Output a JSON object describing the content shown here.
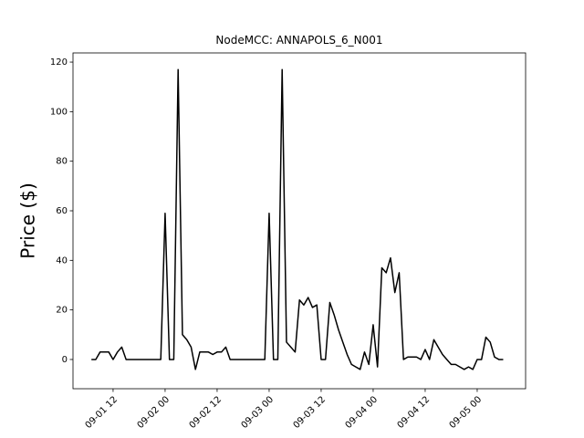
{
  "chart_data": {
    "type": "line",
    "title": "NodeMCC: ANNAPOLS_6_N001",
    "y_label": "Price ($)",
    "color": "#000000",
    "x": [
      "09-01 07",
      "09-01 08",
      "09-01 09",
      "09-01 10",
      "09-01 11",
      "09-01 12",
      "09-01 13",
      "09-01 14",
      "09-01 15",
      "09-01 16",
      "09-01 17",
      "09-01 18",
      "09-01 19",
      "09-01 20",
      "09-01 21",
      "09-01 22",
      "09-01 23",
      "09-02 00",
      "09-02 01",
      "09-02 02",
      "09-02 03",
      "09-02 04",
      "09-02 05",
      "09-02 06",
      "09-02 07",
      "09-02 08",
      "09-02 09",
      "09-02 10",
      "09-02 11",
      "09-02 12",
      "09-02 13",
      "09-02 14",
      "09-02 15",
      "09-02 16",
      "09-02 17",
      "09-02 18",
      "09-02 19",
      "09-02 20",
      "09-02 21",
      "09-02 22",
      "09-02 23",
      "09-03 00",
      "09-03 01",
      "09-03 02",
      "09-03 03",
      "09-03 04",
      "09-03 05",
      "09-03 06",
      "09-03 07",
      "09-03 08",
      "09-03 09",
      "09-03 10",
      "09-03 11",
      "09-03 12",
      "09-03 13",
      "09-03 14",
      "09-03 15",
      "09-03 16",
      "09-03 17",
      "09-03 18",
      "09-03 19",
      "09-03 20",
      "09-03 21",
      "09-03 22",
      "09-03 23",
      "09-04 00",
      "09-04 01",
      "09-04 02",
      "09-04 03",
      "09-04 04",
      "09-04 05",
      "09-04 06",
      "09-04 07",
      "09-04 08",
      "09-04 09",
      "09-04 10",
      "09-04 11",
      "09-04 12",
      "09-04 13",
      "09-04 14",
      "09-04 15",
      "09-04 16",
      "09-04 17",
      "09-04 18",
      "09-04 19",
      "09-04 20",
      "09-04 21",
      "09-04 22",
      "09-04 23",
      "09-05 00",
      "09-05 01",
      "09-05 02",
      "09-05 03",
      "09-05 04",
      "09-05 05",
      "09-05 06"
    ],
    "values": [
      0,
      0,
      3,
      3,
      3,
      0,
      3,
      5,
      0,
      0,
      0,
      0,
      0,
      0,
      0,
      0,
      0,
      59,
      0,
      0,
      117,
      10,
      8,
      5,
      -4,
      3,
      3,
      3,
      2,
      3,
      3,
      5,
      0,
      0,
      0,
      0,
      0,
      0,
      0,
      0,
      0,
      59,
      0,
      0,
      117,
      7,
      5,
      3,
      24,
      22,
      25,
      21,
      22,
      0,
      0,
      23,
      18,
      12,
      7,
      2,
      -2,
      -3,
      -4,
      3,
      -2,
      14,
      -3,
      37,
      35,
      41,
      27,
      35,
      0,
      1,
      1,
      1,
      0,
      4,
      0,
      8,
      5,
      2,
      0,
      -2,
      -2,
      -3,
      -4,
      -3,
      -4,
      0,
      0,
      9,
      7,
      1,
      0,
      0
    ],
    "xlim": [
      "09-01 02:45",
      "09-05 11:10"
    ],
    "xticks": [
      "09-01 12",
      "09-02 00",
      "09-02 12",
      "09-03 00",
      "09-03 12",
      "09-04 00",
      "09-04 12",
      "09-05 00"
    ],
    "ylim": [
      -11.8,
      123.7
    ],
    "yticks": [
      0,
      20,
      40,
      60,
      80,
      100,
      120
    ]
  }
}
